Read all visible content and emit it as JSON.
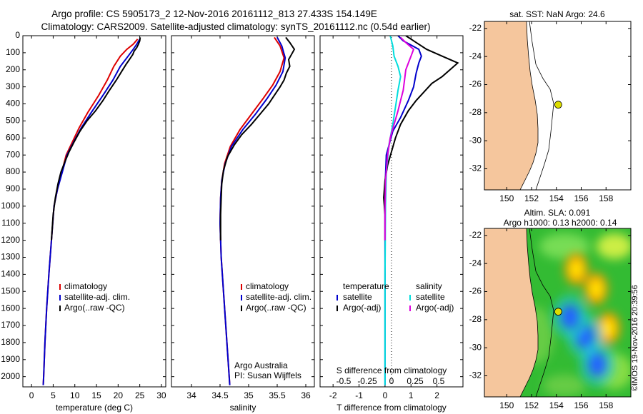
{
  "header": {
    "line1": "Argo profile: CS 5905173_2 12-Nov-2016 20161112_813 27.433S 154.149E",
    "line2": "Climatology: CARS2009. Satellite-adjusted climatology: synTS_20161112.nc (0.54d earlier)"
  },
  "credits": {
    "org": "Argo Australia",
    "pi": "PI: Susan Wijffels"
  },
  "watermark": "©IMOS 19-Nov-2016 20:39:56",
  "colors": {
    "climatology": "#dd0000",
    "satellite": "#0000cc",
    "argo": "#000000",
    "sal_satellite": "#00dddd",
    "sal_argo": "#dd00dd",
    "land": "#f5c69d",
    "sla_base": "#22bb22"
  },
  "chart_data": [
    {
      "id": "temperature",
      "type": "line",
      "xlabel": "temperature (deg C)",
      "ylabel": "",
      "xlim": [
        -2,
        31
      ],
      "ylim": [
        2060,
        0
      ],
      "xticks": [
        0,
        5,
        10,
        15,
        20,
        25,
        30
      ],
      "yticks": [
        0,
        100,
        200,
        300,
        400,
        500,
        600,
        700,
        800,
        900,
        1000,
        1100,
        1200,
        1300,
        1400,
        1500,
        1600,
        1700,
        1800,
        1900,
        2000
      ],
      "legend": [
        "climatology",
        "satellite-adj. clim.",
        "Argo(..raw -QC)"
      ],
      "series": [
        {
          "name": "climatology",
          "color": "#dd0000",
          "points": [
            [
              24.5,
              20
            ],
            [
              23.5,
              50
            ],
            [
              22,
              80
            ],
            [
              20.5,
              120
            ],
            [
              19,
              180
            ],
            [
              17.5,
              260
            ],
            [
              15.5,
              350
            ],
            [
              13,
              450
            ],
            [
              11,
              540
            ],
            [
              9.5,
              620
            ],
            [
              8,
              700
            ],
            [
              7,
              800
            ],
            [
              6,
              900
            ],
            [
              5.2,
              1000
            ],
            [
              4.6,
              1200
            ],
            [
              4,
              1400
            ],
            [
              3.5,
              1600
            ],
            [
              3.1,
              1800
            ],
            [
              2.8,
              2000
            ],
            [
              2.7,
              2050
            ]
          ]
        },
        {
          "name": "satellite-adj. clim.",
          "color": "#0000cc",
          "points": [
            [
              25,
              20
            ],
            [
              24.3,
              50
            ],
            [
              23.5,
              80
            ],
            [
              22.3,
              120
            ],
            [
              20.5,
              180
            ],
            [
              18.8,
              260
            ],
            [
              16.5,
              350
            ],
            [
              13.8,
              450
            ],
            [
              11.5,
              540
            ],
            [
              9.8,
              620
            ],
            [
              8.2,
              700
            ],
            [
              7.1,
              800
            ],
            [
              6,
              900
            ],
            [
              5.2,
              1000
            ],
            [
              4.6,
              1200
            ],
            [
              4,
              1400
            ],
            [
              3.5,
              1600
            ],
            [
              3.1,
              1800
            ],
            [
              2.8,
              2000
            ],
            [
              2.7,
              2050
            ]
          ]
        },
        {
          "name": "Argo(..raw -QC)",
          "color": "#000000",
          "points": [
            [
              25.1,
              10
            ],
            [
              25,
              30
            ],
            [
              24.7,
              50
            ],
            [
              24.3,
              70
            ],
            [
              23.7,
              90
            ],
            [
              23.4,
              110
            ],
            [
              22.6,
              140
            ],
            [
              21.8,
              170
            ],
            [
              20.8,
              210
            ],
            [
              19.6,
              260
            ],
            [
              18,
              320
            ],
            [
              16.5,
              380
            ],
            [
              14.8,
              440
            ],
            [
              12.8,
              500
            ],
            [
              11.2,
              560
            ],
            [
              9.9,
              620
            ],
            [
              8.7,
              680
            ],
            [
              7.7,
              740
            ],
            [
              6.8,
              800
            ],
            [
              6.1,
              870
            ],
            [
              5.5,
              950
            ],
            [
              5,
              1050
            ],
            [
              4.6,
              1200
            ]
          ]
        }
      ]
    },
    {
      "id": "salinity",
      "type": "line",
      "xlabel": "salinity",
      "ylabel": "",
      "xlim": [
        33.65,
        36.15
      ],
      "ylim": [
        2060,
        0
      ],
      "xticks": [
        34,
        34.5,
        35,
        35.5,
        36
      ],
      "legend": [
        "climatology",
        "satellite-adj. clim.",
        "Argo(..raw -QC)"
      ],
      "series": [
        {
          "name": "climatology",
          "color": "#dd0000",
          "points": [
            [
              35.45,
              10
            ],
            [
              35.55,
              60
            ],
            [
              35.62,
              130
            ],
            [
              35.55,
              210
            ],
            [
              35.42,
              290
            ],
            [
              35.25,
              370
            ],
            [
              35.05,
              460
            ],
            [
              34.85,
              550
            ],
            [
              34.68,
              650
            ],
            [
              34.58,
              750
            ],
            [
              34.53,
              850
            ],
            [
              34.51,
              950
            ],
            [
              34.5,
              1100
            ],
            [
              34.52,
              1300
            ],
            [
              34.56,
              1500
            ],
            [
              34.6,
              1700
            ],
            [
              34.64,
              1900
            ],
            [
              34.67,
              2050
            ]
          ]
        },
        {
          "name": "satellite-adj. clim.",
          "color": "#0000cc",
          "points": [
            [
              35.5,
              10
            ],
            [
              35.58,
              60
            ],
            [
              35.64,
              130
            ],
            [
              35.6,
              210
            ],
            [
              35.48,
              290
            ],
            [
              35.32,
              370
            ],
            [
              35.12,
              460
            ],
            [
              34.9,
              550
            ],
            [
              34.7,
              650
            ],
            [
              34.59,
              750
            ],
            [
              34.53,
              850
            ],
            [
              34.51,
              950
            ],
            [
              34.5,
              1100
            ],
            [
              34.52,
              1300
            ],
            [
              34.56,
              1500
            ],
            [
              34.6,
              1700
            ],
            [
              34.64,
              1900
            ],
            [
              34.67,
              2050
            ]
          ]
        },
        {
          "name": "Argo(..raw -QC)",
          "color": "#000000",
          "points": [
            [
              35.65,
              10
            ],
            [
              35.72,
              40
            ],
            [
              35.8,
              80
            ],
            [
              35.75,
              110
            ],
            [
              35.7,
              140
            ],
            [
              35.72,
              180
            ],
            [
              35.66,
              220
            ],
            [
              35.62,
              260
            ],
            [
              35.55,
              300
            ],
            [
              35.45,
              350
            ],
            [
              35.35,
              400
            ],
            [
              35.2,
              460
            ],
            [
              35.05,
              520
            ],
            [
              34.88,
              580
            ],
            [
              34.75,
              640
            ],
            [
              34.63,
              710
            ],
            [
              34.56,
              790
            ],
            [
              34.53,
              870
            ],
            [
              34.52,
              950
            ],
            [
              34.51,
              1050
            ],
            [
              34.51,
              1200
            ]
          ]
        }
      ]
    },
    {
      "id": "difference",
      "type": "line",
      "xlabel": "T difference from climatology",
      "top_label": "S difference from climatology",
      "xlim": [
        -2.5,
        3
      ],
      "ylim": [
        2060,
        0
      ],
      "xticks": [
        -2,
        -1,
        0,
        1,
        2
      ],
      "top_ticks": [
        "-0.5",
        "-0.25",
        "0",
        "0.25",
        "0.5"
      ],
      "legend_titles": [
        "temperature",
        "salinity"
      ],
      "legend": [
        "satellite",
        "Argo(-adj)",
        "satellite",
        "Argo(-adj)"
      ],
      "series": [
        {
          "name": "temperature satellite",
          "color": "#0000cc",
          "points": [
            [
              0.5,
              0
            ],
            [
              0.7,
              30
            ],
            [
              1.3,
              80
            ],
            [
              1.4,
              120
            ],
            [
              1.3,
              160
            ],
            [
              1.2,
              220
            ],
            [
              1.1,
              300
            ],
            [
              0.9,
              380
            ],
            [
              0.6,
              480
            ],
            [
              0.3,
              560
            ],
            [
              0.05,
              700
            ],
            [
              0,
              900
            ],
            [
              0,
              2050
            ]
          ]
        },
        {
          "name": "temperature Argo(-adj)",
          "color": "#000000",
          "points": [
            [
              0.8,
              0
            ],
            [
              1.2,
              40
            ],
            [
              1.6,
              80
            ],
            [
              2.2,
              120
            ],
            [
              2.8,
              160
            ],
            [
              2.5,
              200
            ],
            [
              2.2,
              240
            ],
            [
              1.8,
              280
            ],
            [
              1.5,
              330
            ],
            [
              1.2,
              380
            ],
            [
              0.9,
              440
            ],
            [
              0.6,
              520
            ],
            [
              0.4,
              600
            ],
            [
              0.25,
              680
            ],
            [
              0.1,
              760
            ],
            [
              0,
              850
            ],
            [
              -0.05,
              950
            ],
            [
              0,
              1050
            ],
            [
              0,
              1200
            ]
          ]
        },
        {
          "name": "salinity satellite",
          "color": "#00dddd",
          "points": [
            [
              0.2,
              0
            ],
            [
              0.3,
              60
            ],
            [
              0.35,
              120
            ],
            [
              0.5,
              180
            ],
            [
              0.6,
              240
            ],
            [
              0.5,
              320
            ],
            [
              0.4,
              420
            ],
            [
              0.3,
              520
            ],
            [
              0.15,
              640
            ],
            [
              0.05,
              800
            ],
            [
              0.02,
              1000
            ],
            [
              0,
              1400
            ],
            [
              0,
              2050
            ]
          ]
        },
        {
          "name": "salinity Argo(-adj)",
          "color": "#dd00dd",
          "points": [
            [
              0.6,
              10
            ],
            [
              0.8,
              40
            ],
            [
              1.1,
              80
            ],
            [
              1.0,
              120
            ],
            [
              0.9,
              160
            ],
            [
              0.8,
              200
            ],
            [
              0.75,
              260
            ],
            [
              0.7,
              320
            ],
            [
              0.6,
              380
            ],
            [
              0.5,
              440
            ],
            [
              0.35,
              520
            ],
            [
              0.2,
              600
            ],
            [
              0.1,
              700
            ],
            [
              0.02,
              850
            ],
            [
              0,
              1000
            ],
            [
              0,
              1200
            ]
          ]
        }
      ]
    },
    {
      "id": "sst_map",
      "type": "heatmap",
      "title": "sat. SST: NaN Argo: 24.6",
      "xlim": [
        148.2,
        160
      ],
      "ylim": [
        -33.5,
        -21.5
      ],
      "xticks": [
        150,
        152,
        154,
        156,
        158
      ],
      "yticks": [
        -22,
        -24,
        -26,
        -28,
        -30,
        -32
      ],
      "argo_position": {
        "lon": 154.149,
        "lat": -27.433
      }
    },
    {
      "id": "sla_map",
      "type": "heatmap",
      "title": "Altim. SLA: 0.091",
      "subtitle": "Argo h1000: 0.13 h2000: 0.14",
      "xlim": [
        148.2,
        160
      ],
      "ylim": [
        -33.5,
        -21.5
      ],
      "xticks": [
        150,
        152,
        154,
        156,
        158
      ],
      "yticks": [
        -22,
        -24,
        -26,
        -28,
        -30,
        -32
      ],
      "argo_position": {
        "lon": 154.149,
        "lat": -27.433
      },
      "highs": [
        [
          157.2,
          -25.8
        ],
        [
          155.6,
          -24.4
        ],
        [
          158.2,
          -28.6
        ]
      ],
      "lows": [
        [
          156.3,
          -29.2
        ],
        [
          157.3,
          -31.2
        ],
        [
          155.1,
          -27.8
        ]
      ]
    }
  ]
}
